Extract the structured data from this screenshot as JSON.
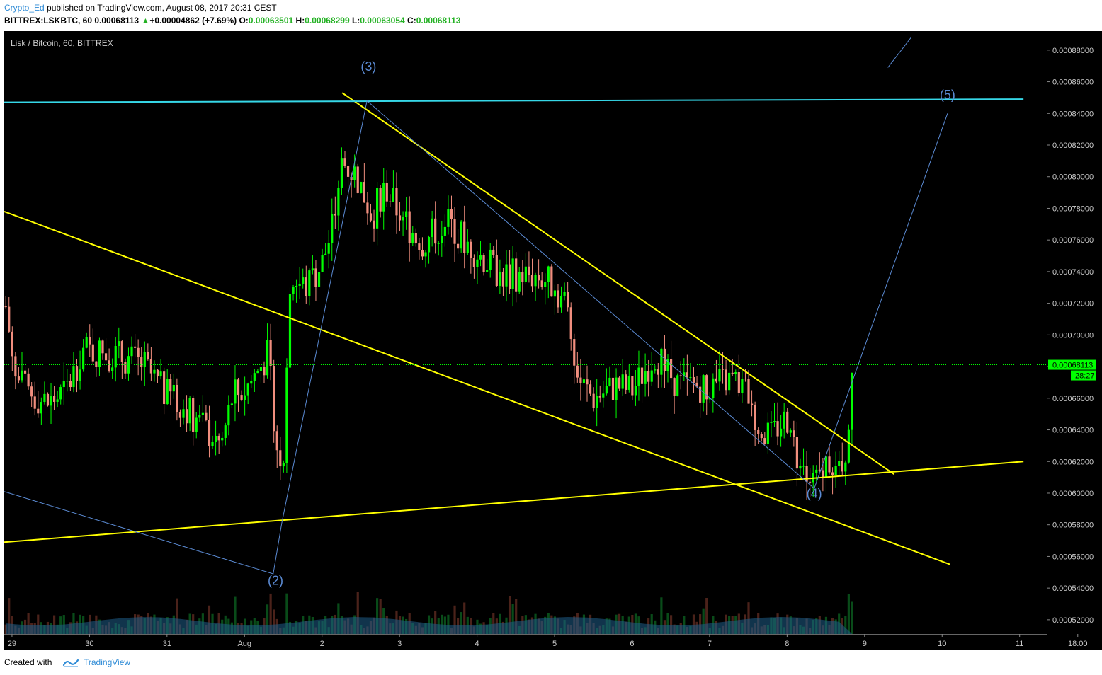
{
  "header": {
    "author": "Crypto_Ed",
    "published": "published on TradingView.com, August 08, 2017 20:31 CEST",
    "symbol": "BITTREX:LSKBTC, 60",
    "last": "0.00068113",
    "change_arrow": "▲",
    "change": "+0.00004862 (+7.69%)",
    "o_label": "O:",
    "o_value": "0.00063501",
    "h_label": "H:",
    "h_value": "0.00068299",
    "l_label": "L:",
    "l_value": "0.00063054",
    "c_label": "C:",
    "c_value": "0.00068113"
  },
  "footer": {
    "created_with": "Created with",
    "brand": "TradingView",
    "logo_icon": "tradingview-logo-icon"
  },
  "colors": {
    "background": "#000000",
    "up": "#00ff00",
    "down": "#f08e7e",
    "trendline": "#ffff00",
    "resistance": "#36d7e7",
    "wave": "#5b8bd4",
    "price_label": "#00ff00",
    "axis_text": "#cccccc"
  },
  "chart_data": {
    "type": "candlestick",
    "title": "Lisk / Bitcoin, 60, BITTREX",
    "timeframe": "60",
    "x_tick_labels": [
      "29",
      "30",
      "31",
      "Aug",
      "2",
      "3",
      "4",
      "5",
      "6",
      "7",
      "8",
      "9",
      "10",
      "11",
      "18:00"
    ],
    "y_tick_labels": [
      "0.00088000",
      "0.00086000",
      "0.00084000",
      "0.00082000",
      "0.00080000",
      "0.00078000",
      "0.00076000",
      "0.00074000",
      "0.00072000",
      "0.00070000",
      "0.00068000",
      "0.00066000",
      "0.00064000",
      "0.00062000",
      "0.00060000",
      "0.00058000",
      "0.00056000",
      "0.00054000",
      "0.00052000"
    ],
    "y_ticks": [
      0.00088,
      0.00086,
      0.00084,
      0.00082,
      0.0008,
      0.00078,
      0.00076,
      0.00074,
      0.00072,
      0.0007,
      0.00068,
      0.00066,
      0.00064,
      0.00062,
      0.0006,
      0.00058,
      0.00056,
      0.00054,
      0.00052
    ],
    "ylim": [
      0.000511,
      0.000892
    ],
    "x_day_range": [
      28.9,
      11.35
    ],
    "last_price_label": "0.00068113",
    "last_price": 0.00068113,
    "countdown": "28:27",
    "price_path": [
      {
        "day": 28.92,
        "price": 0.000718
      },
      {
        "day": 29.05,
        "price": 0.000672
      },
      {
        "day": 29.2,
        "price": 0.000664
      },
      {
        "day": 29.45,
        "price": 0.000656
      },
      {
        "day": 29.7,
        "price": 0.000664
      },
      {
        "day": 29.9,
        "price": 0.00069
      },
      {
        "day": 30.3,
        "price": 0.000688
      },
      {
        "day": 30.7,
        "price": 0.000681
      },
      {
        "day": 30.95,
        "price": 0.000664
      },
      {
        "day": 31.25,
        "price": 0.000654
      },
      {
        "day": 31.5,
        "price": 0.00064
      },
      {
        "day": 31.7,
        "price": 0.00063
      },
      {
        "day": 31.85,
        "price": 0.000662
      },
      {
        "day": 32.0,
        "price": 0.000665
      },
      {
        "day": 32.3,
        "price": 0.000687
      },
      {
        "day": 32.42,
        "price": 0.00063
      },
      {
        "day": 32.5,
        "price": 0.00062
      },
      {
        "day": 32.58,
        "price": 0.000735
      },
      {
        "day": 32.8,
        "price": 0.00073
      },
      {
        "day": 33.0,
        "price": 0.000745
      },
      {
        "day": 33.15,
        "price": 0.00077
      },
      {
        "day": 33.25,
        "price": 0.00081
      },
      {
        "day": 33.45,
        "price": 0.0008
      },
      {
        "day": 33.65,
        "price": 0.000775
      },
      {
        "day": 33.8,
        "price": 0.000795
      },
      {
        "day": 34.0,
        "price": 0.000776
      },
      {
        "day": 34.3,
        "price": 0.000758
      },
      {
        "day": 34.6,
        "price": 0.000772
      },
      {
        "day": 35.0,
        "price": 0.000752
      },
      {
        "day": 35.3,
        "price": 0.000738
      },
      {
        "day": 35.7,
        "price": 0.000738
      },
      {
        "day": 35.9,
        "price": 0.000735
      },
      {
        "day": 36.15,
        "price": 0.00072
      },
      {
        "day": 36.3,
        "price": 0.000672
      },
      {
        "day": 36.5,
        "price": 0.00066
      },
      {
        "day": 36.8,
        "price": 0.000668
      },
      {
        "day": 37.0,
        "price": 0.000665
      },
      {
        "day": 37.3,
        "price": 0.000688
      },
      {
        "day": 37.6,
        "price": 0.000668
      },
      {
        "day": 38.0,
        "price": 0.000668
      },
      {
        "day": 38.3,
        "price": 0.000672
      },
      {
        "day": 38.5,
        "price": 0.000663
      },
      {
        "day": 38.6,
        "price": 0.000642
      },
      {
        "day": 38.8,
        "price": 0.000635
      },
      {
        "day": 38.9,
        "price": 0.000644
      },
      {
        "day": 39.05,
        "price": 0.000648
      },
      {
        "day": 39.1,
        "price": 0.000626
      },
      {
        "day": 39.25,
        "price": 0.000608
      },
      {
        "day": 39.4,
        "price": 0.000606
      },
      {
        "day": 39.55,
        "price": 0.000624
      },
      {
        "day": 39.65,
        "price": 0.000612
      },
      {
        "day": 39.72,
        "price": 0.000608
      },
      {
        "day": 39.78,
        "price": 0.000638
      },
      {
        "day": 39.84,
        "price": 0.00068
      }
    ],
    "annotations": [
      {
        "text": "(2)",
        "day": 32.4,
        "price": 0.000542
      },
      {
        "text": "(3)",
        "day": 33.6,
        "price": 0.000867
      },
      {
        "text": "(4)",
        "day": 39.35,
        "price": 0.000597
      },
      {
        "text": "(5)",
        "day": 41.07,
        "price": 0.000849
      }
    ],
    "trendlines": [
      {
        "name": "wedge-upper",
        "color": "#ffff00",
        "points": [
          {
            "day": 33.26,
            "price": 0.000853
          },
          {
            "day": 40.38,
            "price": 0.000612
          }
        ]
      },
      {
        "name": "wedge-lower",
        "color": "#ffff00",
        "points": [
          {
            "day": 28.9,
            "price": 0.000778
          },
          {
            "day": 41.1,
            "price": 0.000555
          }
        ]
      },
      {
        "name": "support",
        "color": "#ffff00",
        "points": [
          {
            "day": 28.9,
            "price": 0.000569
          },
          {
            "day": 42.05,
            "price": 0.00062
          }
        ]
      },
      {
        "name": "resistance",
        "color": "#36d7e7",
        "points": [
          {
            "day": 28.9,
            "price": 0.000847
          },
          {
            "day": 42.05,
            "price": 0.000849
          }
        ]
      },
      {
        "name": "wave-path",
        "color": "#5b8bd4",
        "points": [
          {
            "day": 28.9,
            "price": 0.000601
          },
          {
            "day": 32.37,
            "price": 0.000549
          },
          {
            "day": 32.48,
            "price": 0.000581
          },
          {
            "day": 33.58,
            "price": 0.000848
          },
          {
            "day": 39.35,
            "price": 0.000603
          },
          {
            "day": 41.07,
            "price": 0.00084
          }
        ]
      },
      {
        "name": "wave-extension",
        "color": "#5b8bd4",
        "points": [
          {
            "day": 40.3,
            "price": 0.000869
          },
          {
            "day": 40.6,
            "price": 0.000888
          }
        ]
      }
    ]
  }
}
